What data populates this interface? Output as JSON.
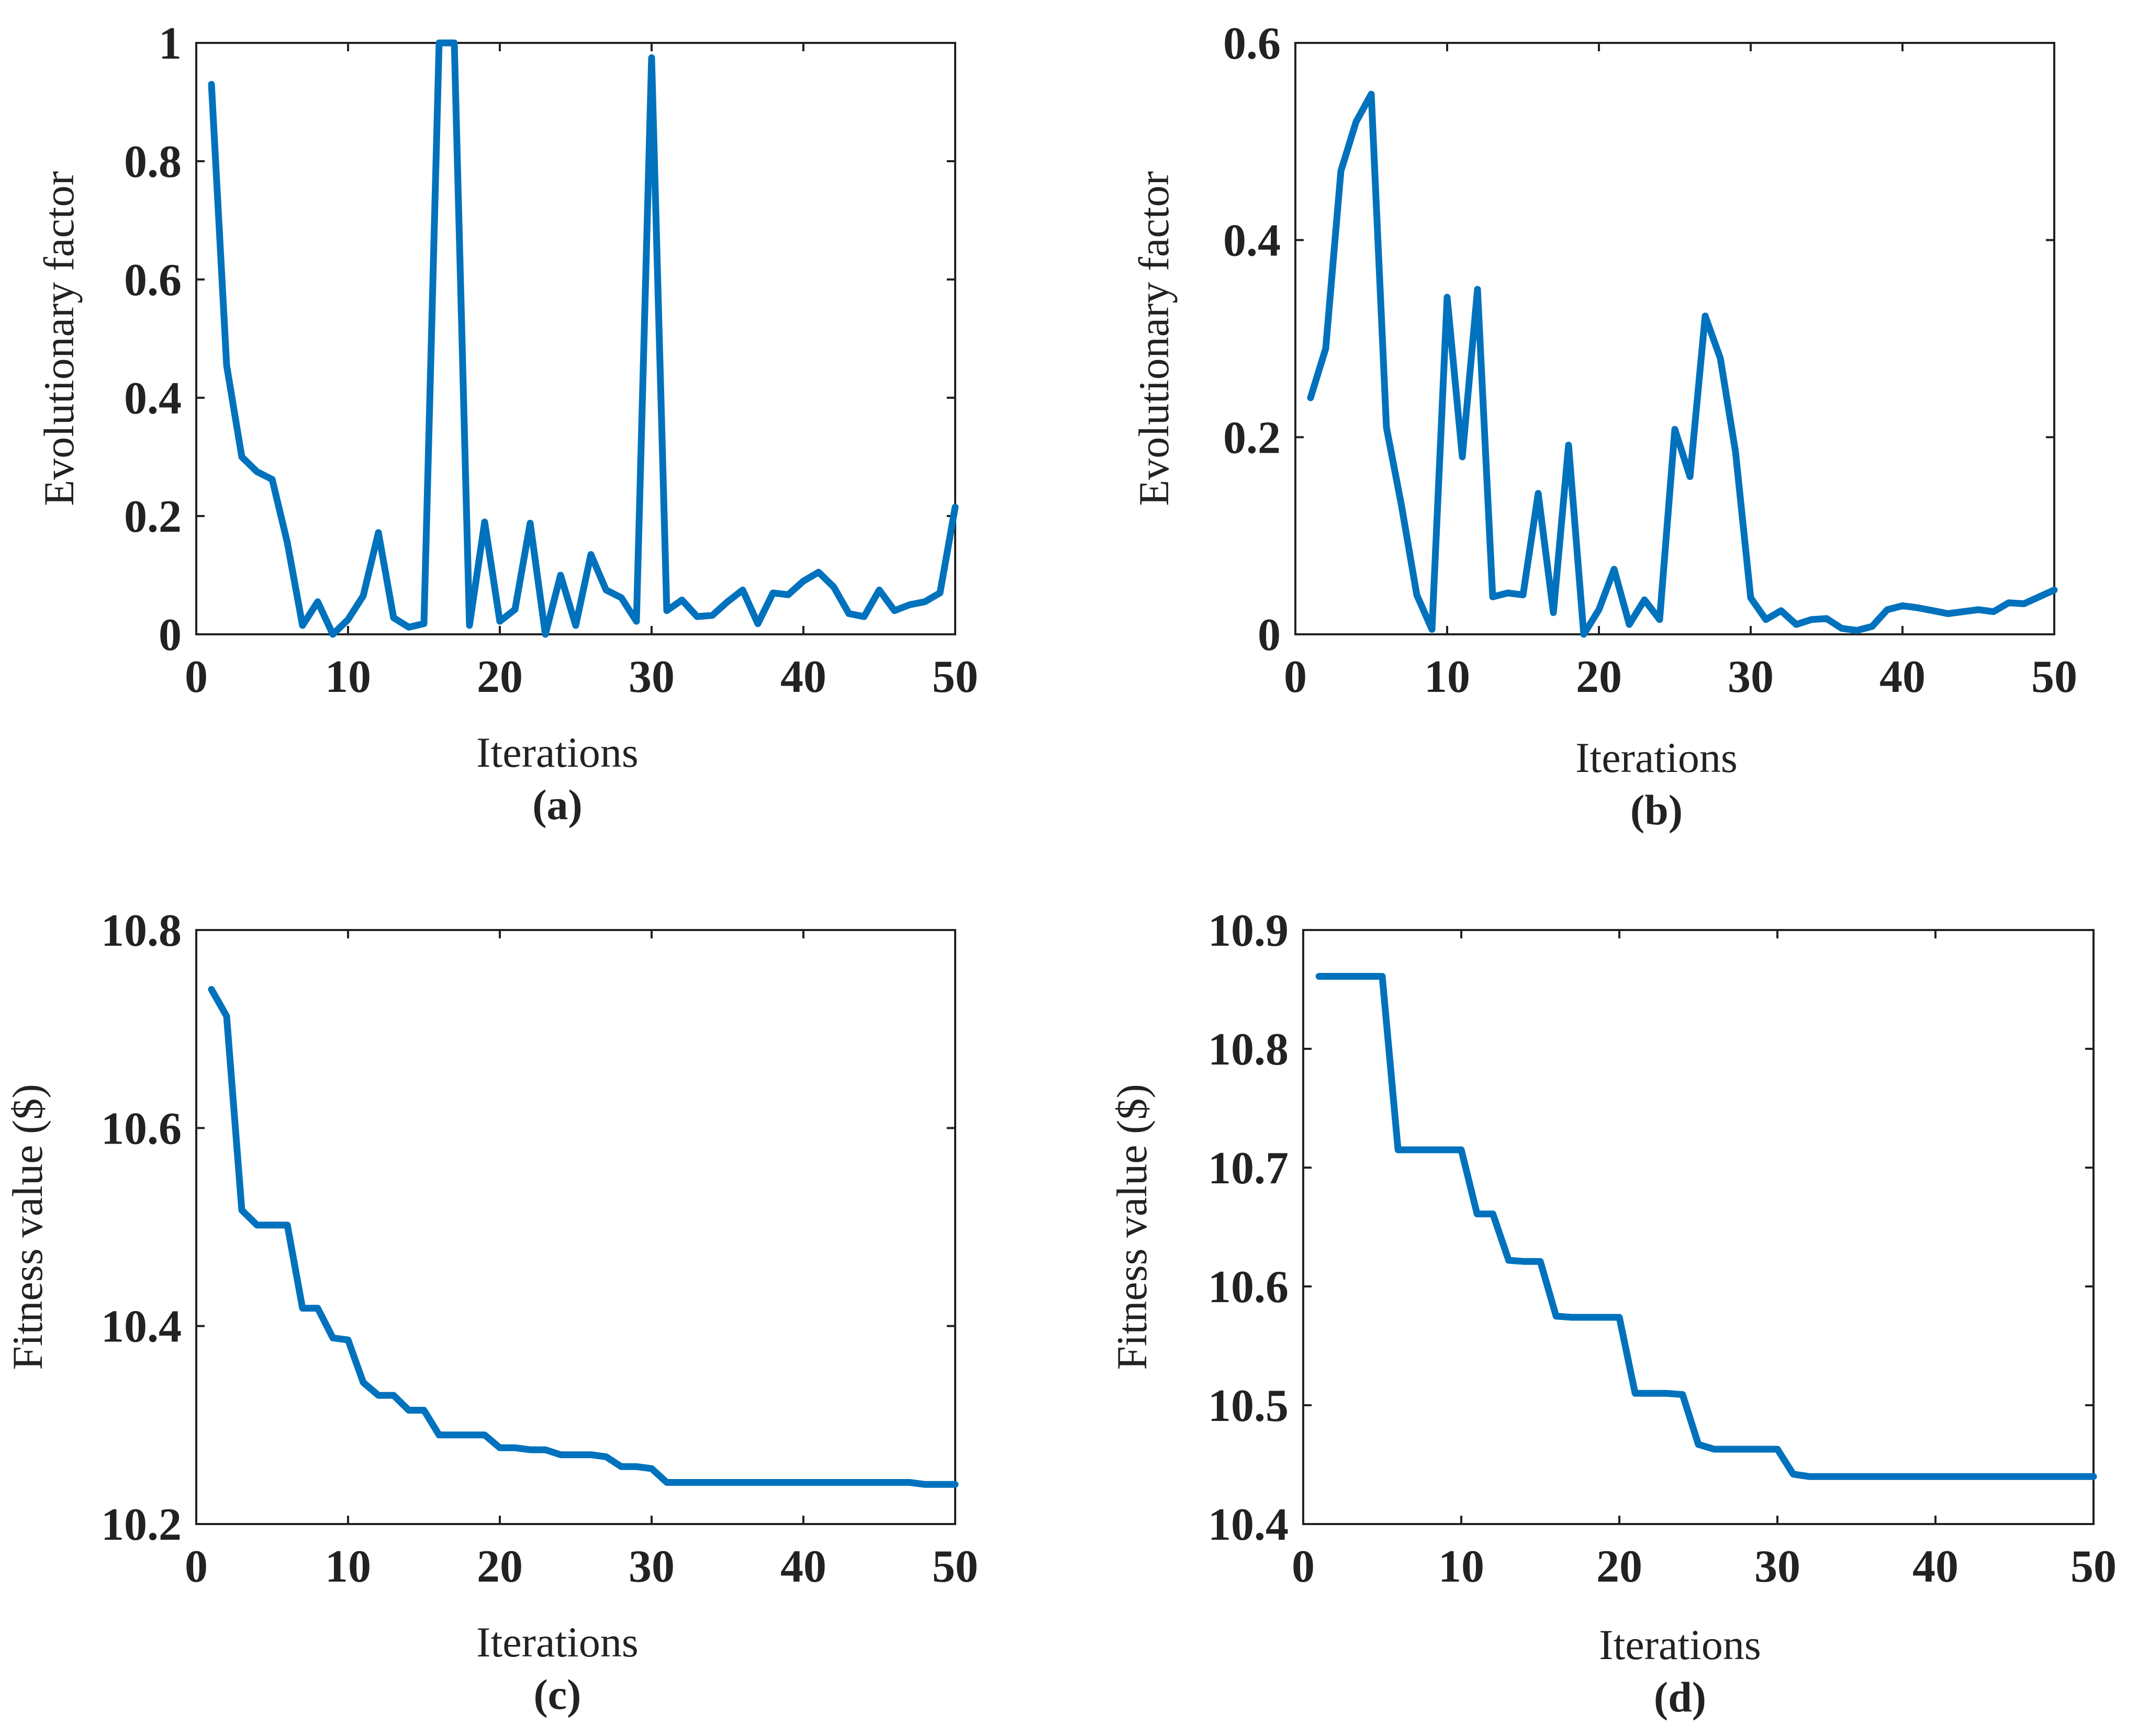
{
  "line_color": "#0072BD",
  "chart_data": [
    {
      "id": "a",
      "type": "line",
      "panel_label": "(a)",
      "xlabel": "Iterations",
      "ylabel": "Evolutionary factor",
      "xlim": [
        0,
        50
      ],
      "ylim": [
        0,
        1
      ],
      "xticks": [
        0,
        10,
        20,
        30,
        40,
        50
      ],
      "yticks": [
        0,
        0.2,
        0.4,
        0.6,
        0.8,
        1
      ],
      "ytick_labels": [
        "0",
        "0.2",
        "0.4",
        "0.6",
        "0.8",
        "1"
      ],
      "grid": false,
      "series": [
        {
          "x": [
            1,
            2,
            3,
            4,
            5,
            6,
            7,
            8,
            9,
            10,
            11,
            12,
            13,
            14,
            15,
            16,
            17,
            18,
            19,
            20,
            21,
            22,
            23,
            24,
            25,
            26,
            27,
            28,
            29,
            30,
            31,
            32,
            33,
            34,
            35,
            36,
            37,
            38,
            39,
            40,
            41,
            42,
            43,
            44,
            45,
            46,
            47,
            48,
            49,
            50
          ],
          "values": [
            0.93,
            0.455,
            0.3,
            0.275,
            0.262,
            0.155,
            0.015,
            0.055,
            0.0,
            0.025,
            0.065,
            0.172,
            0.028,
            0.012,
            0.018,
            1.0,
            1.0,
            0.015,
            0.19,
            0.022,
            0.042,
            0.188,
            0.0,
            0.1,
            0.015,
            0.135,
            0.075,
            0.062,
            0.022,
            0.975,
            0.04,
            0.058,
            0.03,
            0.032,
            0.055,
            0.075,
            0.018,
            0.07,
            0.067,
            0.09,
            0.105,
            0.08,
            0.035,
            0.03,
            0.075,
            0.04,
            0.05,
            0.055,
            0.07,
            0.215
          ]
        }
      ]
    },
    {
      "id": "b",
      "type": "line",
      "panel_label": "(b)",
      "xlabel": "Iterations",
      "ylabel": "Evolutionary factor",
      "xlim": [
        0,
        50
      ],
      "ylim": [
        0,
        0.6
      ],
      "xticks": [
        0,
        10,
        20,
        30,
        40,
        50
      ],
      "yticks": [
        0,
        0.2,
        0.4,
        0.6
      ],
      "ytick_labels": [
        "0",
        "0.2",
        "0.4",
        "0.6"
      ],
      "grid": false,
      "series": [
        {
          "x": [
            1,
            2,
            3,
            4,
            5,
            6,
            7,
            8,
            9,
            10,
            11,
            12,
            13,
            14,
            15,
            16,
            17,
            18,
            19,
            20,
            21,
            22,
            23,
            24,
            25,
            26,
            27,
            28,
            29,
            30,
            31,
            32,
            33,
            34,
            35,
            36,
            37,
            38,
            39,
            40,
            41,
            42,
            43,
            44,
            45,
            46,
            47,
            48,
            49,
            50
          ],
          "values": [
            0.24,
            0.29,
            0.47,
            0.52,
            0.548,
            0.21,
            0.13,
            0.04,
            0.005,
            0.342,
            0.18,
            0.35,
            0.038,
            0.042,
            0.04,
            0.143,
            0.022,
            0.192,
            0.0,
            0.025,
            0.066,
            0.01,
            0.035,
            0.015,
            0.208,
            0.16,
            0.323,
            0.28,
            0.185,
            0.037,
            0.015,
            0.024,
            0.01,
            0.015,
            0.016,
            0.006,
            0.004,
            0.008,
            0.025,
            0.029,
            0.027,
            0.024,
            0.021,
            0.023,
            0.025,
            0.023,
            0.032,
            0.031,
            0.038,
            0.045
          ]
        }
      ]
    },
    {
      "id": "c",
      "type": "line",
      "panel_label": "(c)",
      "xlabel": "Iterations",
      "ylabel": "Fitness value ($)",
      "xlim": [
        0,
        50
      ],
      "ylim": [
        10.2,
        10.8
      ],
      "xticks": [
        0,
        10,
        20,
        30,
        40,
        50
      ],
      "yticks": [
        10.2,
        10.4,
        10.6,
        10.8
      ],
      "ytick_labels": [
        "10.2",
        "10.4",
        "10.6",
        "10.8"
      ],
      "grid": false,
      "series": [
        {
          "x": [
            1,
            2,
            3,
            4,
            5,
            6,
            7,
            8,
            9,
            10,
            11,
            12,
            13,
            14,
            15,
            16,
            17,
            18,
            19,
            20,
            21,
            22,
            23,
            24,
            25,
            26,
            27,
            28,
            29,
            30,
            31,
            32,
            33,
            34,
            35,
            36,
            37,
            38,
            39,
            40,
            41,
            42,
            43,
            44,
            45,
            46,
            47,
            48,
            49,
            50
          ],
          "values": [
            10.74,
            10.713,
            10.517,
            10.502,
            10.502,
            10.502,
            10.418,
            10.418,
            10.388,
            10.386,
            10.343,
            10.33,
            10.33,
            10.315,
            10.315,
            10.29,
            10.29,
            10.29,
            10.29,
            10.277,
            10.277,
            10.275,
            10.275,
            10.27,
            10.27,
            10.27,
            10.268,
            10.258,
            10.258,
            10.256,
            10.242,
            10.242,
            10.242,
            10.242,
            10.242,
            10.242,
            10.242,
            10.242,
            10.242,
            10.242,
            10.242,
            10.242,
            10.242,
            10.242,
            10.242,
            10.242,
            10.242,
            10.24,
            10.24,
            10.24
          ]
        }
      ]
    },
    {
      "id": "d",
      "type": "line",
      "panel_label": "(d)",
      "xlabel": "Iterations",
      "ylabel": "Fitness value ($)",
      "xlim": [
        0,
        50
      ],
      "ylim": [
        10.4,
        10.9
      ],
      "xticks": [
        0,
        10,
        20,
        30,
        40,
        50
      ],
      "yticks": [
        10.4,
        10.5,
        10.6,
        10.7,
        10.8,
        10.9
      ],
      "ytick_labels": [
        "10.4",
        "10.5",
        "10.6",
        "10.7",
        "10.8",
        "10.9"
      ],
      "grid": false,
      "series": [
        {
          "x": [
            1,
            2,
            3,
            4,
            5,
            6,
            7,
            8,
            9,
            10,
            11,
            12,
            13,
            14,
            15,
            16,
            17,
            18,
            19,
            20,
            21,
            22,
            23,
            24,
            25,
            26,
            27,
            28,
            29,
            30,
            31,
            32,
            33,
            34,
            35,
            36,
            37,
            38,
            39,
            40,
            41,
            42,
            43,
            44,
            45,
            46,
            47,
            48,
            49,
            50
          ],
          "values": [
            10.861,
            10.861,
            10.861,
            10.861,
            10.861,
            10.715,
            10.715,
            10.715,
            10.715,
            10.715,
            10.661,
            10.661,
            10.622,
            10.621,
            10.621,
            10.575,
            10.574,
            10.574,
            10.574,
            10.574,
            10.51,
            10.51,
            10.51,
            10.509,
            10.467,
            10.463,
            10.463,
            10.463,
            10.463,
            10.463,
            10.442,
            10.44,
            10.44,
            10.44,
            10.44,
            10.44,
            10.44,
            10.44,
            10.44,
            10.44,
            10.44,
            10.44,
            10.44,
            10.44,
            10.44,
            10.44,
            10.44,
            10.44,
            10.44,
            10.44
          ]
        }
      ]
    }
  ]
}
